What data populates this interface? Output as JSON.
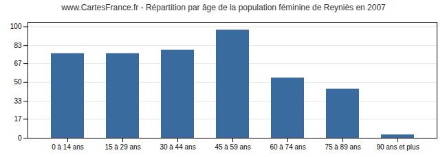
{
  "chart_data": {
    "type": "bar",
    "title": "www.CartesFrance.fr - Répartition par âge de la population féminine de Reyniès en 2007",
    "categories": [
      "0 à 14 ans",
      "15 à 29 ans",
      "30 à 44 ans",
      "45 à 59 ans",
      "60 à 74 ans",
      "75 à 89 ans",
      "90 ans et plus"
    ],
    "values": [
      76,
      76,
      79,
      97,
      54,
      44,
      3
    ],
    "color": "#3a6b9e",
    "ylim": [
      0,
      104
    ],
    "yticks": [
      0,
      17,
      33,
      50,
      67,
      83,
      100
    ],
    "grid": true
  }
}
